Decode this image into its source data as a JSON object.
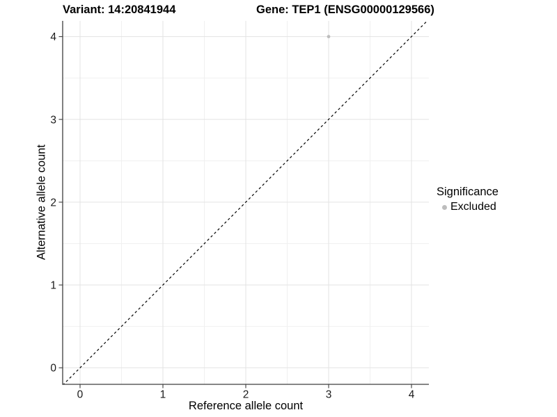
{
  "chart_data": {
    "type": "scatter",
    "title_left": "Variant: 14:20841944",
    "title_right": "Gene: TEP1 (ENSG00000129566)",
    "xlabel": "Reference allele count",
    "ylabel": "Alternative allele count",
    "xlim": [
      -0.21,
      4.21
    ],
    "ylim": [
      -0.2,
      4.19
    ],
    "x_ticks": [
      0,
      1,
      2,
      3,
      4
    ],
    "y_ticks": [
      0,
      1,
      2,
      3,
      4
    ],
    "x_minor_ticks": [
      0.5,
      1.5,
      2.5,
      3.5
    ],
    "y_minor_ticks": [
      0.5,
      1.5,
      2.5,
      3.5
    ],
    "grid": true,
    "legend_position": "right",
    "series": [
      {
        "name": "Excluded",
        "marker": "circle",
        "color": "#bdbdbd",
        "points": [
          {
            "x": 3,
            "y": 4
          }
        ]
      }
    ],
    "reference_line": {
      "slope": 1,
      "intercept": 0,
      "style": "dashed",
      "color": "#000000"
    },
    "colors": {
      "grid_major": "#e3e3e3",
      "grid_minor": "#f0f0f0",
      "axis_line": "#3d3d3d",
      "tick_label": "#1a1a1a",
      "point": "#bdbdbd"
    }
  },
  "legend": {
    "title": "Significance",
    "entries": [
      {
        "label": "Excluded",
        "marker": "circle",
        "color": "#bdbdbd"
      }
    ]
  }
}
